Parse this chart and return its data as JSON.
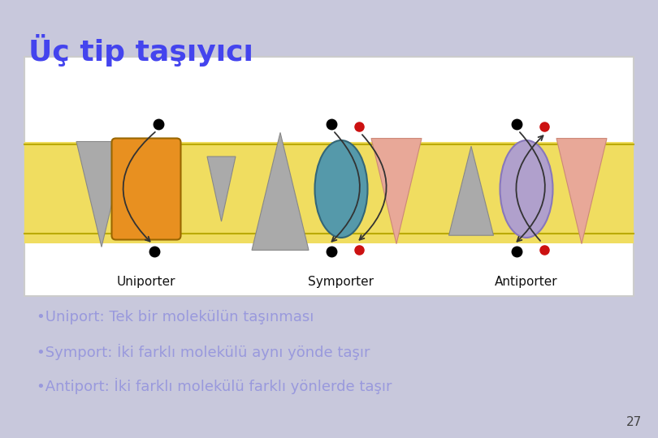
{
  "title": "Üç tip taşıyıcı",
  "title_color": "#4444ee",
  "slide_bg": "#c8c8dc",
  "bullet1": "•Uniport: Tek bir molekülün taşınması",
  "bullet2": "•Symport: İki farklı molekülü aynı yönde taşır",
  "bullet3": "•Antiport: İki farklı molekülü farklı yönlerde taşır",
  "bullet_color": "#9999dd",
  "page_num": "27",
  "membrane_color": "#f0dd60",
  "box_bg": "#ffffff",
  "uniporter_label": "Uniporter",
  "symporter_label": "Symporter",
  "antiporter_label": "Antiporter",
  "gray_tri_color": "#aaaaaa",
  "orange_color": "#e89020",
  "teal_color": "#5599aa",
  "salmon_color": "#e8a898",
  "lavender_color": "#b0a0cc"
}
